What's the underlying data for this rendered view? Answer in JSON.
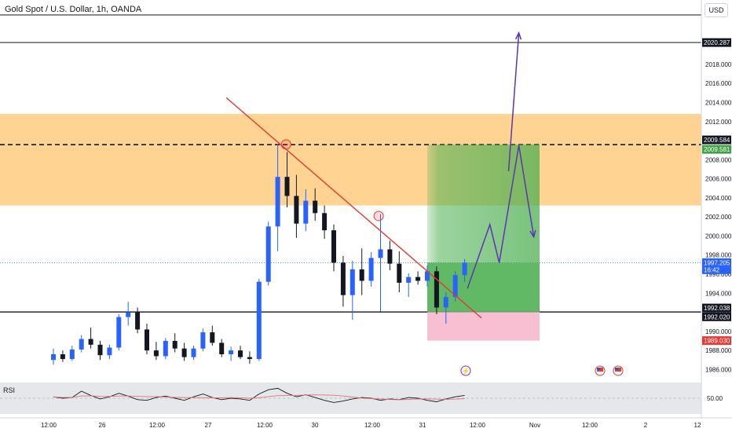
{
  "header": {
    "title": "Gold Spot / U.S. Dollar, 1h, OANDA",
    "currency": "USD"
  },
  "rsi": {
    "label": "RSI",
    "tick": "50.00"
  },
  "colors": {
    "up": "#2962ff",
    "down": "#131722",
    "trendline": "#e53935",
    "zone": "#ffcc80",
    "target": "#4caf50",
    "stop": "#f8bbd0",
    "projection": "#5e35b1"
  },
  "chart_data": {
    "type": "candlestick",
    "symbol": "XAUUSD",
    "timeframe": "1h",
    "y_axis": {
      "ticks": [
        "2018.000",
        "2016.000",
        "2014.000",
        "2012.000",
        "2010.000",
        "2008.000",
        "2006.000",
        "2004.000",
        "2002.000",
        "2000.000",
        "1998.000",
        "1996.000",
        "1994.000",
        "1992.000",
        "1990.000",
        "1988.000",
        "1986.000"
      ],
      "ylim": [
        1984.8,
        2023.1
      ]
    },
    "x_axis": {
      "ticks": [
        "12:00",
        "26",
        "12:00",
        "27",
        "12:00",
        "30",
        "12:00",
        "31",
        "12:00",
        "Nov",
        "12:00",
        "2",
        "12"
      ]
    },
    "price_labels": [
      {
        "text": "2020.287",
        "value": 2020.287,
        "style": "dark"
      },
      {
        "text": "2009.584",
        "value": 2009.584,
        "style": "dark"
      },
      {
        "text": "2009.581",
        "value": 2009.581,
        "style": "green"
      },
      {
        "text": "1997.205",
        "value": 1997.205,
        "style": "blue",
        "sub": "16:42"
      },
      {
        "text": "1992.038",
        "value": 1992.038,
        "style": "dark"
      },
      {
        "text": "1992.020",
        "value": 1992.02,
        "style": "dark"
      },
      {
        "text": "1989.030",
        "value": 1989.03,
        "style": "red"
      }
    ],
    "levels": {
      "resistance_line": 2020.287,
      "entry": 1997.205,
      "support_line": 1992.03,
      "target": 2009.58,
      "stop": 1989.03
    },
    "zone": {
      "from": 2003.2,
      "to": 2012.8
    },
    "candles": [
      {
        "o": 1987.0,
        "h": 1988.2,
        "l": 1986.5,
        "c": 1987.6
      },
      {
        "o": 1987.6,
        "h": 1988.0,
        "l": 1986.8,
        "c": 1987.1
      },
      {
        "o": 1987.1,
        "h": 1988.5,
        "l": 1986.9,
        "c": 1988.1
      },
      {
        "o": 1988.1,
        "h": 1989.6,
        "l": 1987.8,
        "c": 1989.2
      },
      {
        "o": 1989.2,
        "h": 1990.4,
        "l": 1988.2,
        "c": 1988.6
      },
      {
        "o": 1988.6,
        "h": 1989.0,
        "l": 1987.0,
        "c": 1987.5
      },
      {
        "o": 1987.5,
        "h": 1988.6,
        "l": 1987.1,
        "c": 1988.3
      },
      {
        "o": 1988.3,
        "h": 1991.8,
        "l": 1988.0,
        "c": 1991.5
      },
      {
        "o": 1991.5,
        "h": 1993.1,
        "l": 1990.6,
        "c": 1992.0
      },
      {
        "o": 1992.0,
        "h": 1992.5,
        "l": 1989.8,
        "c": 1990.2
      },
      {
        "o": 1990.2,
        "h": 1990.8,
        "l": 1987.6,
        "c": 1988.0
      },
      {
        "o": 1988.0,
        "h": 1988.9,
        "l": 1987.0,
        "c": 1987.4
      },
      {
        "o": 1987.4,
        "h": 1989.3,
        "l": 1987.1,
        "c": 1989.0
      },
      {
        "o": 1989.0,
        "h": 1989.8,
        "l": 1987.8,
        "c": 1988.2
      },
      {
        "o": 1988.2,
        "h": 1988.8,
        "l": 1986.9,
        "c": 1987.3
      },
      {
        "o": 1987.3,
        "h": 1988.5,
        "l": 1987.0,
        "c": 1988.2
      },
      {
        "o": 1988.2,
        "h": 1990.3,
        "l": 1987.9,
        "c": 1989.9
      },
      {
        "o": 1989.9,
        "h": 1990.6,
        "l": 1988.5,
        "c": 1988.8
      },
      {
        "o": 1988.8,
        "h": 1989.2,
        "l": 1987.3,
        "c": 1987.6
      },
      {
        "o": 1987.6,
        "h": 1988.4,
        "l": 1986.9,
        "c": 1988.0
      },
      {
        "o": 1988.0,
        "h": 1988.5,
        "l": 1987.1,
        "c": 1987.3
      },
      {
        "o": 1987.3,
        "h": 1987.9,
        "l": 1986.6,
        "c": 1987.1
      },
      {
        "o": 1987.1,
        "h": 1995.5,
        "l": 1986.9,
        "c": 1995.2
      },
      {
        "o": 1995.2,
        "h": 2001.5,
        "l": 1994.8,
        "c": 2001.0
      },
      {
        "o": 2001.0,
        "h": 2009.6,
        "l": 1998.4,
        "c": 2006.2
      },
      {
        "o": 2006.2,
        "h": 2008.8,
        "l": 2003.0,
        "c": 2004.2
      },
      {
        "o": 2004.2,
        "h": 2006.4,
        "l": 1999.8,
        "c": 2001.3
      },
      {
        "o": 2001.3,
        "h": 2004.9,
        "l": 2000.5,
        "c": 2003.7
      },
      {
        "o": 2003.7,
        "h": 2005.0,
        "l": 2001.6,
        "c": 2002.4
      },
      {
        "o": 2002.4,
        "h": 2003.2,
        "l": 1999.7,
        "c": 2000.6
      },
      {
        "o": 2000.6,
        "h": 2001.2,
        "l": 1996.3,
        "c": 1997.2
      },
      {
        "o": 1997.2,
        "h": 1997.9,
        "l": 1992.6,
        "c": 1993.8
      },
      {
        "o": 1993.8,
        "h": 1997.4,
        "l": 1991.2,
        "c": 1996.5
      },
      {
        "o": 1996.5,
        "h": 1998.7,
        "l": 1993.8,
        "c": 1995.3
      },
      {
        "o": 1995.3,
        "h": 1998.3,
        "l": 1994.7,
        "c": 1997.7
      },
      {
        "o": 1997.7,
        "h": 2002.3,
        "l": 1992.1,
        "c": 1998.6
      },
      {
        "o": 1998.6,
        "h": 1999.5,
        "l": 1996.4,
        "c": 1997.1
      },
      {
        "o": 1997.1,
        "h": 1998.4,
        "l": 1994.1,
        "c": 1995.1
      },
      {
        "o": 1995.1,
        "h": 1996.1,
        "l": 1993.6,
        "c": 1995.7
      },
      {
        "o": 1995.7,
        "h": 1996.3,
        "l": 1994.9,
        "c": 1995.3
      },
      {
        "o": 1995.3,
        "h": 1996.9,
        "l": 1994.7,
        "c": 1996.3
      },
      {
        "o": 1996.3,
        "h": 1996.8,
        "l": 1991.8,
        "c": 1992.5
      },
      {
        "o": 1992.5,
        "h": 1994.1,
        "l": 1990.8,
        "c": 1993.6
      },
      {
        "o": 1993.6,
        "h": 1996.3,
        "l": 1993.1,
        "c": 1995.9
      },
      {
        "o": 1995.9,
        "h": 1997.6,
        "l": 1995.2,
        "c": 1997.2
      }
    ],
    "trendline": [
      {
        "i": 18.5,
        "v": 2014.5
      },
      {
        "i": 45.8,
        "v": 1991.4
      }
    ],
    "projection": [
      {
        "i": 44.3,
        "v": 1994.5
      },
      {
        "i": 46.7,
        "v": 2001.2
      },
      {
        "i": 47.7,
        "v": 1997.2
      },
      {
        "i": 49.8,
        "v": 2009.5
      },
      {
        "i": 51.4,
        "v": 1999.9
      }
    ],
    "projection2": [
      {
        "i": 48.7,
        "v": 2006.8
      },
      {
        "i": 49.8,
        "v": 2021.3
      }
    ],
    "rsi_values": [
      52,
      50,
      51,
      60,
      54,
      49,
      52,
      57,
      53,
      48,
      47,
      51,
      53,
      50,
      47,
      52,
      56,
      51,
      48,
      50,
      49,
      47,
      56,
      62,
      64,
      57,
      52,
      55,
      51,
      47,
      44,
      46,
      49,
      51,
      50,
      47,
      49,
      48,
      51,
      50,
      47,
      45,
      49,
      52,
      54
    ]
  }
}
